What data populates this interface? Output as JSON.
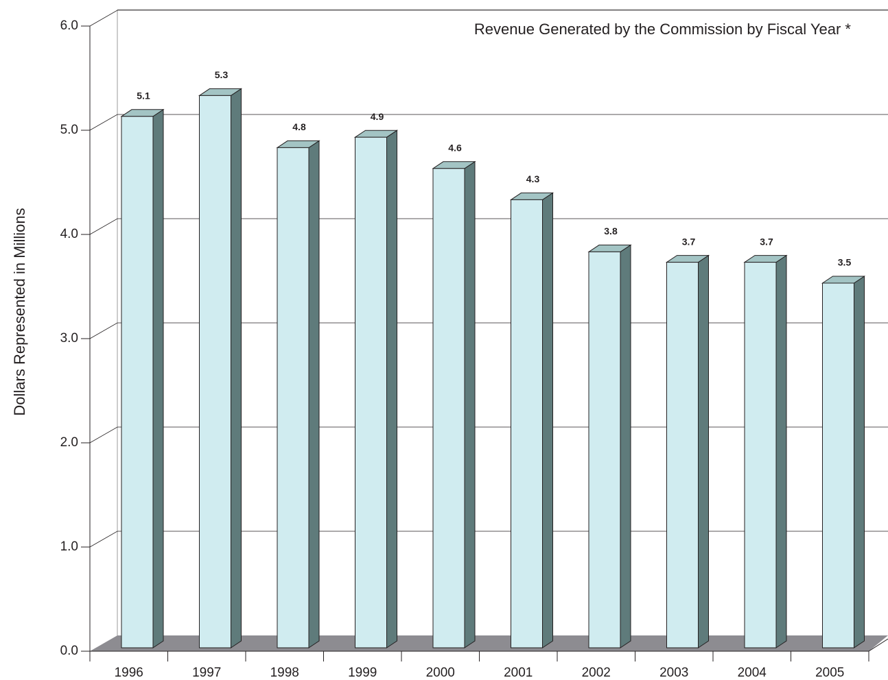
{
  "chart_data": {
    "type": "bar3d",
    "title": "Revenue Generated by the Commission by Fiscal Year *",
    "y_label": "Dollars Represented in Millions",
    "categories": [
      "1996",
      "1997",
      "1998",
      "1999",
      "2000",
      "2001",
      "2002",
      "2003",
      "2004",
      "2005"
    ],
    "values": [
      5.1,
      5.3,
      4.8,
      4.9,
      4.6,
      4.3,
      3.8,
      3.7,
      3.7,
      3.5
    ],
    "color": "#d0ecf0",
    "ylim": [
      0,
      6
    ],
    "yticks": [
      {
        "value": 0,
        "label": "0.0"
      },
      {
        "value": 1,
        "label": "1.0"
      },
      {
        "value": 2,
        "label": "2.0"
      },
      {
        "value": 3,
        "label": "3.0"
      },
      {
        "value": 4,
        "label": "4.0"
      },
      {
        "value": 5,
        "label": "5.0"
      },
      {
        "value": 6,
        "label": "6.0"
      }
    ],
    "grid": true
  }
}
